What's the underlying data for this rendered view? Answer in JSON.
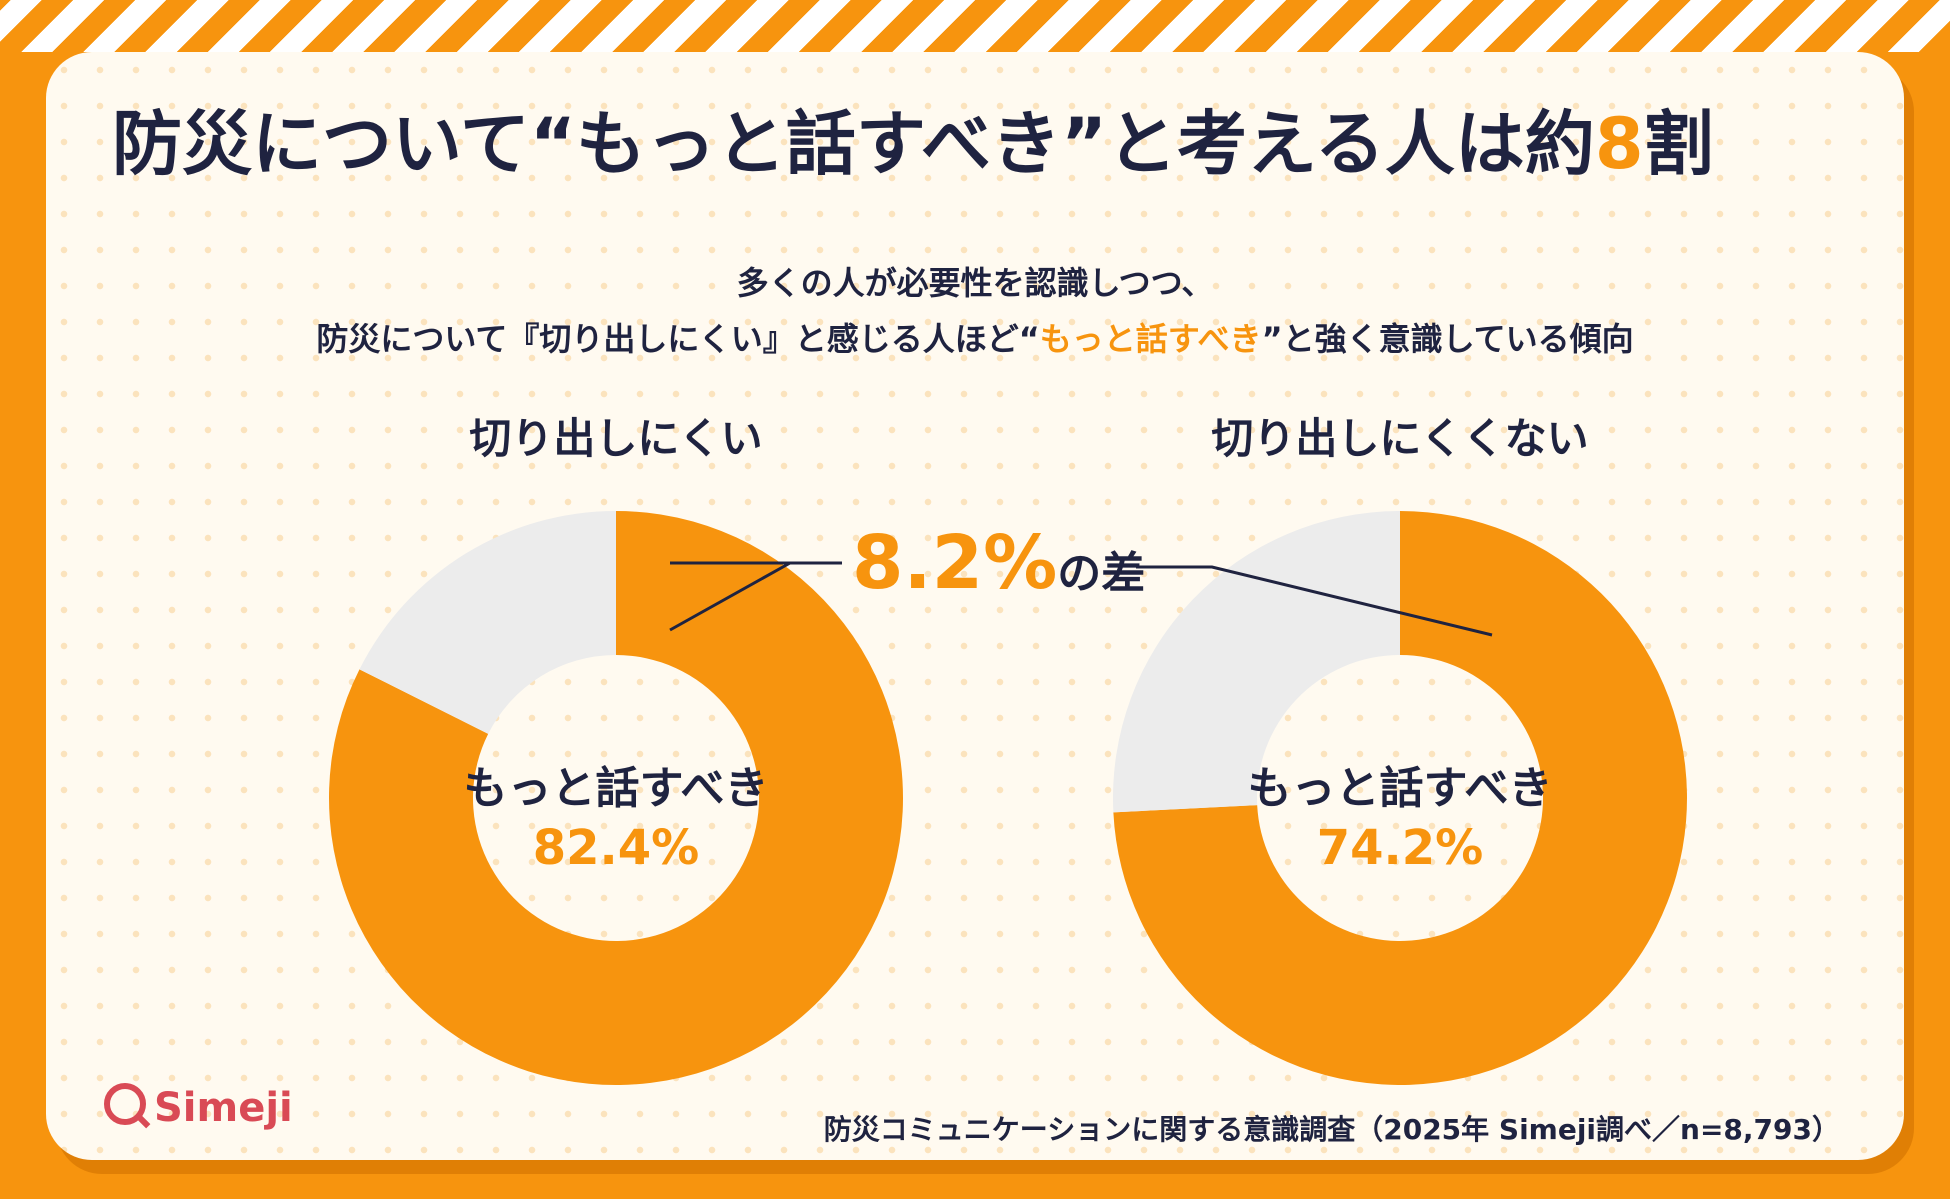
{
  "title": {
    "before": "防災について“もっと話すべき”と考える人は約",
    "highlight": "8",
    "after": "割"
  },
  "subtitle": {
    "line1": "多くの人が必要性を認識しつつ、",
    "line2_before": "防災について『切り出しにくい』と感じる人ほど“",
    "line2_highlight": "もっと話すべき",
    "line2_after": "”と強く意識している傾向"
  },
  "difference": {
    "value": "8.2%",
    "suffix": "の差"
  },
  "logo": "Simeji",
  "source": "防災コミュニケーションに関する意識調査（2025年 Simeji調べ／n=8,793）",
  "colors": {
    "accent": "#f7940e",
    "remainder": "#ececec",
    "text": "#1f2340"
  },
  "chart_data": [
    {
      "type": "pie",
      "title": "切り出しにくい",
      "center_label": "もっと話すべき",
      "center_value": "82.4%",
      "slices": [
        {
          "label": "もっと話すべき",
          "value": 82.4,
          "color": "#f7940e"
        },
        {
          "value": 17.6,
          "color": "#ececec"
        }
      ]
    },
    {
      "type": "pie",
      "title": "切り出しにくくない",
      "center_label": "もっと話すべき",
      "center_value": "74.2%",
      "slices": [
        {
          "label": "もっと話すべき",
          "value": 74.2,
          "color": "#f7940e"
        },
        {
          "value": 25.8,
          "color": "#ececec"
        }
      ]
    }
  ]
}
